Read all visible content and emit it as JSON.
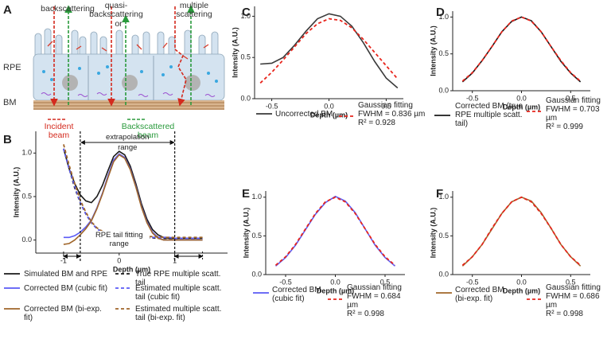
{
  "diagram": {
    "panel": "A",
    "labels": {
      "backscattering": "backscattering",
      "quasi": "quasi-backscattering",
      "or": "or",
      "multiple": "multiple scattering",
      "rpe": "RPE",
      "bm": "BM",
      "incident": "Incident beam",
      "backscattered": "Backscattered beam"
    }
  },
  "chart_data": [
    {
      "panel": "B",
      "type": "line",
      "xlabel": "Depth (µm)",
      "ylabel": "Intensity (A.U.)",
      "x": [
        -1.0,
        -0.9,
        -0.8,
        -0.7,
        -0.6,
        -0.5,
        -0.4,
        -0.3,
        -0.2,
        -0.1,
        0,
        0.1,
        0.2,
        0.3,
        0.4,
        0.5,
        0.6,
        0.7,
        0.8,
        0.9,
        1.0,
        1.1,
        1.2,
        1.3,
        1.4,
        1.5
      ],
      "xlim": [
        -1.5,
        1.95
      ],
      "xticks": [
        -1,
        0,
        1
      ],
      "ylim": [
        -0.15,
        1.25
      ],
      "yticks": [
        {
          "value": 0,
          "label": "0.0"
        },
        {
          "value": 0.5,
          "label": "0.5"
        },
        {
          "value": 1,
          "label": "1.0"
        }
      ],
      "series": [
        {
          "name": "Simulated BM and RPE",
          "color": "#1a1a1a",
          "dash": false,
          "values": [
            1.05,
            0.82,
            0.65,
            0.52,
            0.45,
            0.43,
            0.5,
            0.63,
            0.8,
            0.96,
            1.02,
            0.98,
            0.85,
            0.65,
            0.42,
            0.24,
            0.12,
            0.06,
            0.03,
            0.02,
            0.02,
            0.02,
            0.02,
            0.02,
            0.02,
            0.02
          ]
        },
        {
          "name": "True RPE multiple scatt. tail",
          "color": "#1a1a1a",
          "dash": true,
          "values": [
            1.05,
            0.82,
            0.6,
            0.43,
            0.3,
            0.2,
            0.13,
            0.09,
            0.06,
            0.05,
            0.04,
            0.035,
            0.03,
            0.03,
            0.03,
            0.025,
            0.025,
            0.02,
            0.02,
            0.02,
            0.02,
            0.02,
            0.02,
            0.02,
            0.02,
            0.02
          ]
        },
        {
          "name": "Corrected BM (cubic fit)",
          "color": "#5a5af5",
          "dash": false,
          "values": [
            0.03,
            0.03,
            0.05,
            0.09,
            0.15,
            0.23,
            0.37,
            0.54,
            0.74,
            0.92,
            0.99,
            0.95,
            0.82,
            0.62,
            0.39,
            0.21,
            0.09,
            0.03,
            0.0,
            0.0,
            0.0,
            0.0,
            0.0,
            0.0,
            0.0,
            0.0
          ]
        },
        {
          "name": "Estimated multiple scatt. tail (cubic fit)",
          "color": "#5a5af5",
          "dash": true,
          "values": [
            1.05,
            0.82,
            0.62,
            0.43,
            0.3,
            0.2,
            0.13,
            0.08,
            0.06,
            0.04,
            0.03,
            0.03,
            0.03,
            0.03,
            0.03,
            0.03,
            0.03,
            0.03,
            0.03,
            0.03,
            0.02,
            0.02,
            0.02,
            0.02,
            0.02,
            0.02
          ]
        },
        {
          "name": "Corrected BM (bi-exp. fit)",
          "color": "#a0662a",
          "dash": false,
          "values": [
            -0.05,
            -0.04,
            0.0,
            0.06,
            0.13,
            0.22,
            0.36,
            0.53,
            0.72,
            0.9,
            0.98,
            0.94,
            0.81,
            0.61,
            0.38,
            0.2,
            0.08,
            0.02,
            0.0,
            0.0,
            0.0,
            0.0,
            0.0,
            0.0,
            0.0,
            0.0
          ]
        },
        {
          "name": "Estimated multiple scatt. tail (bi-exp. fit)",
          "color": "#a0662a",
          "dash": true,
          "values": [
            1.1,
            0.86,
            0.65,
            0.46,
            0.32,
            0.21,
            0.14,
            0.1,
            0.08,
            0.06,
            0.05,
            0.04,
            0.04,
            0.04,
            0.04,
            0.04,
            0.04,
            0.04,
            0.03,
            0.03,
            0.03,
            0.03,
            0.03,
            0.03,
            0.03,
            0.03
          ]
        }
      ],
      "annotations": {
        "extrapolation_label": "extrapolation range",
        "fitting_label": "RPE tail fitting range",
        "extrapolation_range": [
          -0.7,
          1.0
        ],
        "fitting_range": [
          -1.0,
          1.5
        ]
      }
    },
    {
      "panel": "C",
      "type": "line",
      "xlabel": "Depth (µm)",
      "ylabel": "Intensity (A.U.)",
      "x": [
        -0.6,
        -0.5,
        -0.4,
        -0.3,
        -0.2,
        -0.1,
        0,
        0.1,
        0.2,
        0.3,
        0.4,
        0.5,
        0.6
      ],
      "xlim": [
        -0.65,
        0.65
      ],
      "xticks": [
        -0.5,
        {
          "value": 0,
          "label": "0.0"
        },
        0.5
      ],
      "ylim": [
        0,
        1.12
      ],
      "yticks": [
        {
          "value": 0,
          "label": "0.0"
        },
        {
          "value": 0.5,
          "label": "0.5"
        },
        {
          "value": 1,
          "label": "1.0"
        }
      ],
      "series": [
        {
          "name": "Uncorrected BM",
          "color": "#3a3a3a",
          "dash": false,
          "values": [
            0.42,
            0.43,
            0.5,
            0.65,
            0.82,
            0.97,
            1.03,
            1.0,
            0.88,
            0.68,
            0.45,
            0.25,
            0.13
          ]
        },
        {
          "name": "Gaussian fitting",
          "color": "#e8251c",
          "dash": true,
          "values": [
            0.19,
            0.32,
            0.47,
            0.63,
            0.79,
            0.91,
            0.97,
            0.95,
            0.86,
            0.72,
            0.56,
            0.4,
            0.24
          ]
        }
      ],
      "annotations": [
        "FWHM = 0.836 µm",
        "R² = 0.928"
      ]
    },
    {
      "panel": "D",
      "type": "line",
      "xlabel": "Depth (µm)",
      "ylabel": "Intensity (A.U.)",
      "x": [
        -0.6,
        -0.5,
        -0.4,
        -0.3,
        -0.2,
        -0.1,
        0,
        0.1,
        0.2,
        0.3,
        0.4,
        0.5,
        0.6
      ],
      "xlim": [
        -0.7,
        0.7
      ],
      "xticks": [
        -0.5,
        {
          "value": 0,
          "label": "0.0"
        },
        0.5
      ],
      "ylim": [
        0,
        1.08
      ],
      "yticks": [
        {
          "value": 0,
          "label": "0.0"
        },
        {
          "value": 0.5,
          "label": "0.5"
        },
        {
          "value": 1,
          "label": "1.0"
        }
      ],
      "series": [
        {
          "name": "Corrected BM (true RPE multiple scatt. tail)",
          "color": "#1a1a1a",
          "dash": false,
          "values": [
            0.12,
            0.24,
            0.41,
            0.6,
            0.8,
            0.94,
            1.0,
            0.95,
            0.8,
            0.6,
            0.4,
            0.24,
            0.12
          ]
        },
        {
          "name": "Gaussian fitting",
          "color": "#e8251c",
          "dash": true,
          "values": [
            0.13,
            0.245,
            0.41,
            0.6,
            0.8,
            0.945,
            1.0,
            0.945,
            0.8,
            0.6,
            0.41,
            0.245,
            0.13
          ]
        }
      ],
      "annotations": [
        "FWHM = 0.703 µm",
        "R² = 0.999"
      ]
    },
    {
      "panel": "E",
      "type": "line",
      "xlabel": "Depth (µm)",
      "ylabel": "Intensity (A.U.)",
      "x": [
        -0.6,
        -0.5,
        -0.4,
        -0.3,
        -0.2,
        -0.1,
        0,
        0.1,
        0.2,
        0.3,
        0.4,
        0.5,
        0.6
      ],
      "xlim": [
        -0.7,
        0.7
      ],
      "xticks": [
        -0.5,
        {
          "value": 0,
          "label": "0.0"
        },
        0.5
      ],
      "ylim": [
        0,
        1.08
      ],
      "yticks": [
        {
          "value": 0,
          "label": "0.0"
        },
        {
          "value": 0.5,
          "label": "0.5"
        },
        {
          "value": 1,
          "label": "1.0"
        }
      ],
      "series": [
        {
          "name": "Corrected BM (cubic fit)",
          "color": "#5a5af5",
          "dash": false,
          "values": [
            0.11,
            0.22,
            0.38,
            0.58,
            0.78,
            0.93,
            1.01,
            0.95,
            0.8,
            0.59,
            0.38,
            0.22,
            0.11
          ]
        },
        {
          "name": "Gaussian fitting",
          "color": "#e8251c",
          "dash": true,
          "values": [
            0.12,
            0.23,
            0.39,
            0.59,
            0.79,
            0.94,
            1.0,
            0.94,
            0.79,
            0.59,
            0.39,
            0.23,
            0.12
          ]
        }
      ],
      "annotations": [
        "FWHM = 0.684 µm",
        "R² = 0.998"
      ]
    },
    {
      "panel": "F",
      "type": "line",
      "xlabel": "Depth (µm)",
      "ylabel": "Intensity (A.U.)",
      "x": [
        -0.6,
        -0.5,
        -0.4,
        -0.3,
        -0.2,
        -0.1,
        0,
        0.1,
        0.2,
        0.3,
        0.4,
        0.5,
        0.6
      ],
      "xlim": [
        -0.7,
        0.7
      ],
      "xticks": [
        -0.5,
        {
          "value": 0,
          "label": "0.0"
        },
        0.5
      ],
      "ylim": [
        0,
        1.08
      ],
      "yticks": [
        {
          "value": 0,
          "label": "0.0"
        },
        {
          "value": 0.5,
          "label": "0.5"
        },
        {
          "value": 1,
          "label": "1.0"
        }
      ],
      "series": [
        {
          "name": "Corrected BM (bi-exp. fit)",
          "color": "#a0662a",
          "dash": false,
          "values": [
            0.11,
            0.23,
            0.39,
            0.59,
            0.79,
            0.94,
            1.0,
            0.95,
            0.8,
            0.6,
            0.39,
            0.23,
            0.11
          ]
        },
        {
          "name": "Gaussian fitting",
          "color": "#e8251c",
          "dash": true,
          "values": [
            0.12,
            0.23,
            0.39,
            0.6,
            0.79,
            0.94,
            1.0,
            0.94,
            0.79,
            0.6,
            0.39,
            0.23,
            0.12
          ]
        }
      ],
      "annotations": [
        "FWHM = 0.686 µm",
        "R² = 0.998"
      ]
    }
  ]
}
